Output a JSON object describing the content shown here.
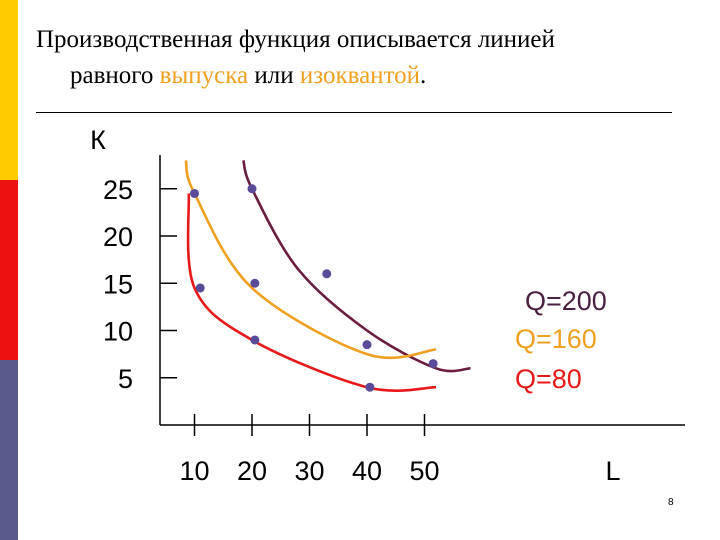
{
  "title": {
    "part1": "Производственная функция описывается линией",
    "part2": "равного ",
    "highlight1": "выпуска",
    "part3": " или ",
    "highlight2": "изоквантой",
    "part4": "."
  },
  "colors": {
    "highlight": "#f0a020",
    "sidebar": [
      "#ffcc00",
      "#ee1111",
      "#5a5a8c"
    ]
  },
  "page_number": "8",
  "chart_data": {
    "type": "line",
    "title": "",
    "xlabel": "L",
    "ylabel": "К",
    "x_ticks": [
      10,
      20,
      30,
      40,
      50
    ],
    "y_ticks": [
      25,
      20,
      15,
      10,
      5
    ],
    "xlim": [
      4,
      80
    ],
    "ylim": [
      0,
      28
    ],
    "grid": false,
    "series": [
      {
        "name": "Q=200",
        "color": "#6b1d3f",
        "x": [
          18.5,
          20,
          28,
          40,
          52,
          58
        ],
        "y": [
          28,
          25,
          16.5,
          10,
          6,
          6
        ],
        "points_x": [
          20,
          33,
          51.5
        ],
        "points_y": [
          25,
          16,
          6.5
        ]
      },
      {
        "name": "Q=160",
        "color": "#f0a020",
        "x": [
          8.5,
          10,
          20,
          40,
          52
        ],
        "y": [
          28,
          24.5,
          14.5,
          7.5,
          8
        ],
        "points_x": [
          10,
          20.5,
          40
        ],
        "points_y": [
          24.5,
          15,
          8.5
        ]
      },
      {
        "name": "Q=80",
        "color": "#e81818",
        "x": [
          9,
          10,
          20,
          40,
          52
        ],
        "y": [
          24.5,
          14.5,
          9,
          4,
          4
        ],
        "points_x": [
          11,
          20.5,
          40.5
        ],
        "points_y": [
          14.5,
          9,
          4
        ]
      }
    ]
  }
}
